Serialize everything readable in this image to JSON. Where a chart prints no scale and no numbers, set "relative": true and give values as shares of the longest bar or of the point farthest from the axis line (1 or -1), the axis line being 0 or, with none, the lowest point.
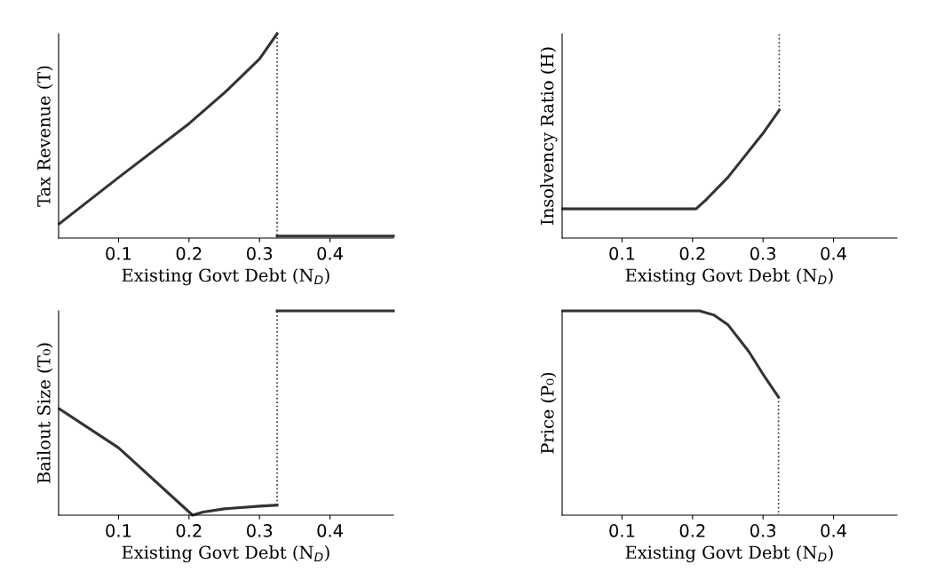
{
  "chart_data": [
    {
      "type": "line",
      "ylabel": "Tax Revenue (T)",
      "xlabel": "Existing Govt Debt (N$_{D}$)",
      "relative": true,
      "xlim": [
        0.015,
        0.49
      ],
      "xticks": [
        0.1,
        0.2,
        0.3,
        0.4
      ],
      "grid": false,
      "legend": false,
      "series": [
        {
          "color": "#333333",
          "x": [
            0.016,
            0.1,
            0.2,
            0.25,
            0.3,
            0.325
          ],
          "values": [
            0.07,
            0.296,
            0.56,
            0.71,
            0.877,
            1.0
          ]
        },
        {
          "color": "#333333",
          "x": [
            0.325,
            0.325
          ],
          "values": [
            1.0,
            0.0
          ],
          "line_style": "dotted"
        },
        {
          "color": "#333333",
          "x": [
            0.325,
            0.49
          ],
          "values": [
            0.01,
            0.01
          ]
        }
      ]
    },
    {
      "type": "line",
      "ylabel": "Insolvency Ratio (H)",
      "xlabel": "Existing Govt Debt (N$_{D}$)",
      "relative": true,
      "xlim": [
        0.015,
        0.49
      ],
      "xticks": [
        0.1,
        0.2,
        0.3,
        0.4
      ],
      "grid": false,
      "legend": false,
      "series": [
        {
          "color": "#333333",
          "x": [
            0.016,
            0.1,
            0.205,
            0.22,
            0.25,
            0.3,
            0.323
          ],
          "values": [
            0.143,
            0.143,
            0.143,
            0.19,
            0.296,
            0.513,
            0.626
          ]
        },
        {
          "color": "#333333",
          "x": [
            0.323,
            0.323
          ],
          "values": [
            0.626,
            1.0
          ],
          "line_style": "dotted"
        }
      ]
    },
    {
      "type": "line",
      "ylabel": "Bailout Size (T₀)",
      "xlabel": "Existing Govt Debt (N$_{D}$)",
      "relative": true,
      "xlim": [
        0.015,
        0.49
      ],
      "xticks": [
        0.1,
        0.2,
        0.3,
        0.4
      ],
      "grid": false,
      "legend": false,
      "series": [
        {
          "color": "#333333",
          "x": [
            0.016,
            0.1,
            0.205,
            0.22,
            0.25,
            0.3,
            0.325
          ],
          "values": [
            0.52,
            0.33,
            0.0,
            0.015,
            0.031,
            0.044,
            0.049
          ]
        },
        {
          "color": "#333333",
          "x": [
            0.325,
            0.325
          ],
          "values": [
            0.049,
            1.0
          ],
          "line_style": "dotted"
        },
        {
          "color": "#333333",
          "x": [
            0.325,
            0.49
          ],
          "values": [
            1.0,
            1.0
          ]
        }
      ]
    },
    {
      "type": "line",
      "ylabel": "Price (P₀)",
      "xlabel": "Existing Govt Debt (N$_{D}$)",
      "relative": true,
      "xlim": [
        0.015,
        0.49
      ],
      "xticks": [
        0.1,
        0.2,
        0.3,
        0.4
      ],
      "grid": false,
      "legend": false,
      "series": [
        {
          "color": "#333333",
          "x": [
            0.016,
            0.1,
            0.21,
            0.23,
            0.25,
            0.28,
            0.3,
            0.322
          ],
          "values": [
            1.0,
            1.0,
            1.0,
            0.98,
            0.933,
            0.8,
            0.69,
            0.578
          ]
        },
        {
          "color": "#333333",
          "x": [
            0.322,
            0.322
          ],
          "values": [
            0.578,
            0.0
          ],
          "line_style": "dotted"
        }
      ]
    }
  ]
}
